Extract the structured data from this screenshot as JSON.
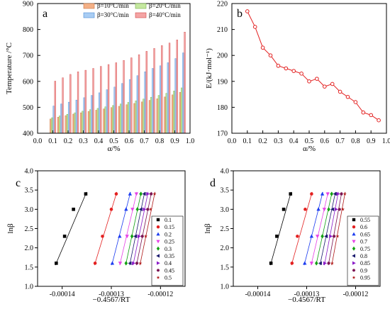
{
  "colors": {
    "b10": "#f4b086",
    "b10_edge": "#c87848",
    "b20": "#c5e8a0",
    "b20_edge": "#78b048",
    "b30": "#a9cdf4",
    "b30_edge": "#4a8ad6",
    "b40": "#f4a4a4",
    "b40_edge": "#d04848",
    "line_b": "#e32020",
    "series_c": [
      "#000000",
      "#e32020",
      "#1c3cf0",
      "#e642e6",
      "#12a012",
      "#1a1a6e",
      "#8a1cc8",
      "#7a1452",
      "#b01c1c"
    ],
    "series_d": [
      "#000000",
      "#e32020",
      "#1c3cf0",
      "#e642e6",
      "#12a012",
      "#1a1a6e",
      "#8a1cc8",
      "#7a1452",
      "#b01c1c"
    ]
  },
  "chart_data": [
    {
      "panel": "a",
      "type": "bar",
      "xlabel": "α/%",
      "ylabel": "Temperature /°C",
      "xlim": [
        0.0,
        1.0
      ],
      "ylim": [
        400,
        900
      ],
      "xticks": [
        "0.0",
        "0.1",
        "0.2",
        "0.3",
        "0.4",
        "0.5",
        "0.6",
        "0.7",
        "0.8",
        "0.9",
        "1.0"
      ],
      "yticks": [
        "400",
        "500",
        "600",
        "700",
        "800",
        "900"
      ],
      "legend": [
        "β=10°C/min",
        "β=20°C/min",
        "β=30°C/min",
        "β=40°C/min"
      ],
      "legend_position": "top",
      "x": [
        0.1,
        0.15,
        0.2,
        0.25,
        0.3,
        0.35,
        0.4,
        0.45,
        0.5,
        0.55,
        0.6,
        0.65,
        0.7,
        0.75,
        0.8,
        0.85,
        0.9,
        0.95
      ],
      "series": [
        {
          "name": "β=10°C/min",
          "values": [
            455,
            462,
            468,
            474,
            479,
            484,
            489,
            494,
            499,
            504,
            510,
            515,
            521,
            527,
            533,
            540,
            548,
            558
          ]
        },
        {
          "name": "β=20°C/min",
          "values": [
            460,
            467,
            473,
            479,
            485,
            491,
            496,
            502,
            507,
            513,
            519,
            525,
            532,
            539,
            546,
            554,
            563,
            575
          ]
        },
        {
          "name": "β=30°C/min",
          "values": [
            505,
            513,
            520,
            528,
            537,
            546,
            556,
            568,
            578,
            592,
            607,
            622,
            637,
            650,
            660,
            672,
            688,
            710
          ]
        },
        {
          "name": "β=40°C/min",
          "values": [
            601,
            614,
            627,
            637,
            643,
            650,
            658,
            665,
            672,
            681,
            691,
            703,
            716,
            727,
            738,
            748,
            760,
            790
          ]
        }
      ]
    },
    {
      "panel": "b",
      "type": "line",
      "xlabel": "α/%",
      "ylabel": "E/(kJ·mol⁻¹)",
      "xlim": [
        0.0,
        1.0
      ],
      "ylim": [
        170,
        220
      ],
      "xticks": [
        "0.0",
        "0.1",
        "0.2",
        "0.3",
        "0.4",
        "0.5",
        "0.6",
        "0.7",
        "0.8",
        "0.9",
        "1.0"
      ],
      "yticks": [
        "170",
        "180",
        "190",
        "200",
        "210",
        "220"
      ],
      "x": [
        0.1,
        0.15,
        0.2,
        0.25,
        0.3,
        0.35,
        0.4,
        0.45,
        0.5,
        0.55,
        0.6,
        0.65,
        0.7,
        0.75,
        0.8,
        0.85,
        0.9,
        0.95
      ],
      "values": [
        217,
        211,
        203,
        200,
        196,
        195,
        194,
        193,
        190,
        191,
        188,
        189,
        186,
        184,
        182,
        178,
        177,
        175
      ]
    },
    {
      "panel": "c",
      "type": "scatter",
      "xlabel": "−0.4567/RT",
      "ylabel": "lnβ",
      "xlim": [
        -0.000145,
        -0.000115
      ],
      "ylim": [
        1.0,
        4.0
      ],
      "xticks": [
        "-0.00014",
        "-0.00013",
        "-0.00012"
      ],
      "yticks": [
        "1.0",
        "1.5",
        "2.0",
        "2.5",
        "3.0",
        "3.5",
        "4.0"
      ],
      "legend_position": "bottom-right",
      "y": [
        1.6,
        2.3,
        3.0,
        3.4
      ],
      "series": [
        {
          "name": "0.1",
          "x": [
            -0.0001412,
            -0.0001395,
            -0.0001377,
            -0.0001352
          ]
        },
        {
          "name": "0.15",
          "x": [
            -0.0001333,
            -0.0001318,
            -0.00013,
            -0.000129
          ]
        },
        {
          "name": "0.2",
          "x": [
            -0.0001298,
            -0.0001283,
            -0.000127,
            -0.0001262
          ]
        },
        {
          "name": "0.25",
          "x": [
            -0.0001282,
            -0.0001268,
            -0.0001257,
            -0.0001249
          ]
        },
        {
          "name": "0.3",
          "x": [
            -0.000127,
            -0.0001258,
            -0.0001247,
            -0.000124
          ]
        },
        {
          "name": "0.35",
          "x": [
            -0.0001262,
            -0.0001251,
            -0.000124,
            -0.0001233
          ]
        },
        {
          "name": "0.4",
          "x": [
            -0.0001255,
            -0.0001244,
            -0.0001233,
            -0.0001226
          ]
        },
        {
          "name": "0.45",
          "x": [
            -0.0001248,
            -0.0001237,
            -0.0001226,
            -0.0001219
          ]
        },
        {
          "name": "0.5",
          "x": [
            -0.0001241,
            -0.000123,
            -0.000122,
            -0.0001212
          ]
        }
      ]
    },
    {
      "panel": "d",
      "type": "scatter",
      "xlabel": "−0.4567/RT",
      "ylabel": "lnβ",
      "xlim": [
        -0.000145,
        -0.000115
      ],
      "ylim": [
        1.0,
        4.0
      ],
      "xticks": [
        "-0.00014",
        "-0.00013",
        "-0.00012"
      ],
      "yticks": [
        "1.0",
        "1.5",
        "2.0",
        "2.5",
        "3.0",
        "3.5",
        "4.0"
      ],
      "legend_position": "bottom-right",
      "y": [
        1.6,
        2.3,
        3.0,
        3.4
      ],
      "series": [
        {
          "name": "0.55",
          "x": [
            -0.0001373,
            -0.0001361,
            -0.0001347,
            -0.0001333
          ]
        },
        {
          "name": "0.6",
          "x": [
            -0.000133,
            -0.0001319,
            -0.0001303,
            -0.000129
          ]
        },
        {
          "name": "0.65",
          "x": [
            -0.0001304,
            -0.000129,
            -0.0001276,
            -0.0001268
          ]
        },
        {
          "name": "0.7",
          "x": [
            -0.000129,
            -0.0001278,
            -0.0001264,
            -0.0001257
          ]
        },
        {
          "name": "0.75",
          "x": [
            -0.000128,
            -0.0001268,
            -0.0001255,
            -0.0001249
          ]
        },
        {
          "name": "0.8",
          "x": [
            -0.0001272,
            -0.000126,
            -0.0001247,
            -0.0001242
          ]
        },
        {
          "name": "0.85",
          "x": [
            -0.0001263,
            -0.0001251,
            -0.000124,
            -0.0001236
          ]
        },
        {
          "name": "0.9",
          "x": [
            -0.0001255,
            -0.0001244,
            -0.0001233,
            -0.0001229
          ]
        },
        {
          "name": "0.95",
          "x": [
            -0.0001248,
            -0.0001237,
            -0.0001226,
            -0.0001222
          ]
        }
      ]
    }
  ]
}
